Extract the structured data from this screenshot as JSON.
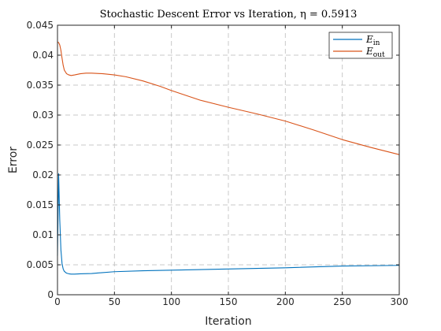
{
  "chart_data": {
    "type": "line",
    "title": "Stochastic Descent Error vs Iteration, η = 0.5913",
    "xlabel": "Iteration",
    "ylabel": "Error",
    "xlim": [
      0,
      300
    ],
    "ylim": [
      0,
      0.045
    ],
    "xticks": [
      0,
      50,
      100,
      150,
      200,
      250,
      300
    ],
    "yticks": [
      0,
      0.005,
      0.01,
      0.015,
      0.02,
      0.025,
      0.03,
      0.035,
      0.04,
      0.045
    ],
    "grid": true,
    "legend_position": "top-right",
    "series": [
      {
        "name": "E_in",
        "legend_main": "E",
        "legend_sub": "in",
        "color": "#0072bd",
        "x": [
          0,
          1,
          2,
          3,
          4,
          5,
          6,
          8,
          10,
          12,
          15,
          20,
          30,
          50,
          75,
          100,
          150,
          200,
          250,
          300
        ],
        "y": [
          0.0065,
          0.0202,
          0.0125,
          0.0075,
          0.0052,
          0.0043,
          0.0039,
          0.0036,
          0.0035,
          0.00345,
          0.00345,
          0.0035,
          0.00355,
          0.00385,
          0.004,
          0.0041,
          0.0043,
          0.0045,
          0.0048,
          0.0049
        ]
      },
      {
        "name": "E_out",
        "legend_main": "E",
        "legend_sub": "out",
        "color": "#d95319",
        "x": [
          0,
          1,
          2,
          3,
          4,
          5,
          6,
          8,
          10,
          12,
          15,
          20,
          25,
          30,
          40,
          50,
          60,
          75,
          90,
          100,
          125,
          150,
          175,
          200,
          225,
          250,
          275,
          300
        ],
        "y": [
          0.0422,
          0.0421,
          0.0417,
          0.0408,
          0.0395,
          0.0383,
          0.0375,
          0.0369,
          0.0367,
          0.0366,
          0.0367,
          0.0369,
          0.037,
          0.037,
          0.0369,
          0.0367,
          0.0364,
          0.0357,
          0.0348,
          0.0341,
          0.0325,
          0.0313,
          0.0302,
          0.029,
          0.0275,
          0.0259,
          0.0246,
          0.0234
        ]
      }
    ]
  }
}
